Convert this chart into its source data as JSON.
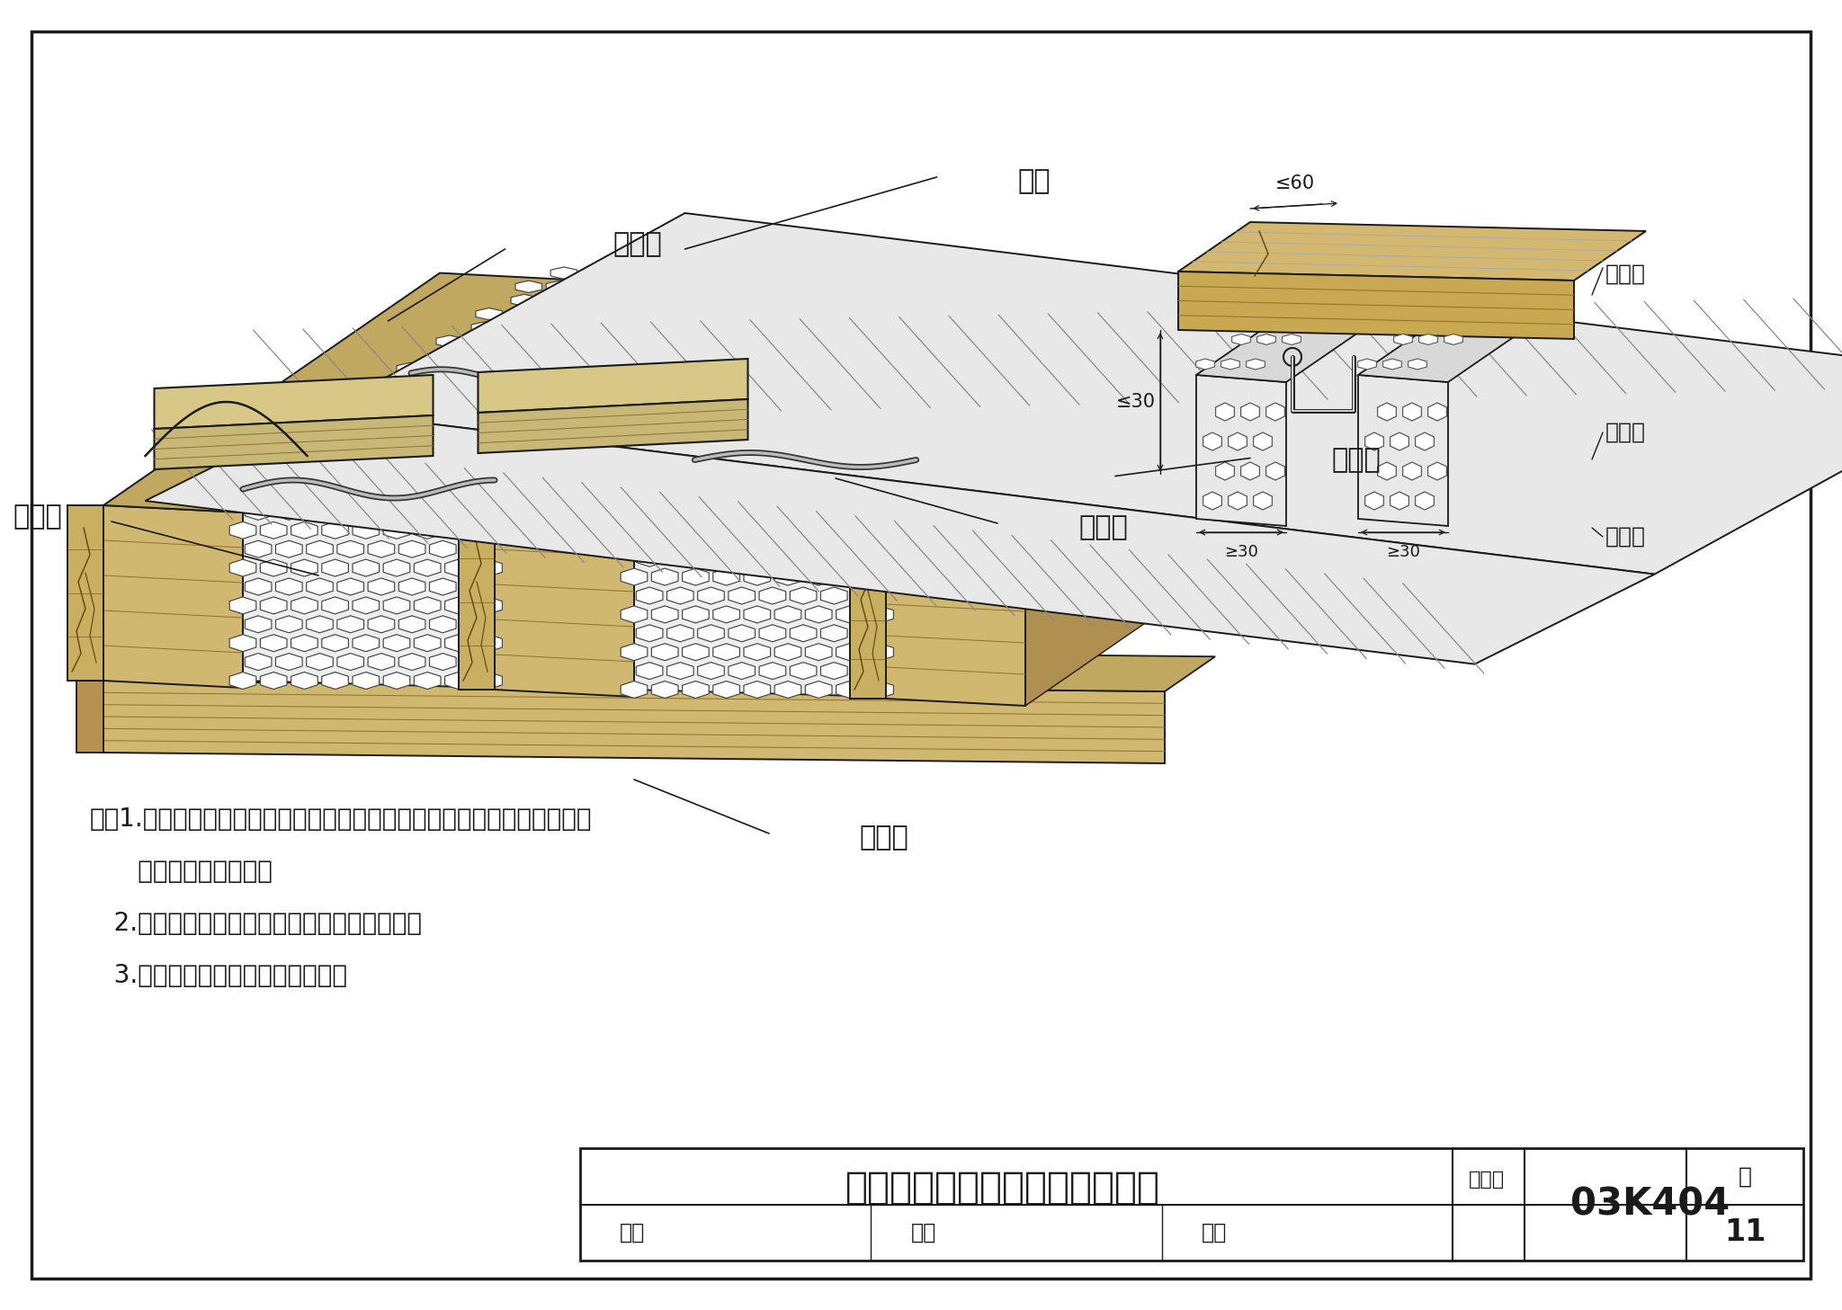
{
  "bg_color": "white",
  "line_color": "#1a1a1a",
  "title_block": {
    "main_title": "低温热水地板辐射供暖地面做法",
    "tu_ji_label": "图集号",
    "tu_ji_val": "03K404",
    "shen_he": "审核",
    "jiao_dui": "校对",
    "she_ji": "设计",
    "ye_label": "页",
    "ye_val": "11"
  },
  "labels": {
    "mao_di_ban": "毛地板",
    "lv_bo": "铝箔",
    "jue_re_ceng": "绝热层",
    "zhu_long_gu": "主龙骨",
    "su_liao_guan": "塑料管",
    "ci_long_gu": "次龙骨"
  },
  "notes": [
    "注：1.塑料管应尽量避免穿越主龙骨，可采用塑料管端部联通的方式。如需",
    "      穿过时做法见右图。",
    "   2.聚苯乙烯绝热层的厚度与次龙骨高度相同。",
    "   3.铝箔与毛地板之间用焦渣填实。"
  ],
  "dim_60": "≤60",
  "dim_30": "≤30",
  "dim_g30a": "≥30",
  "dim_g30b": "≥30"
}
